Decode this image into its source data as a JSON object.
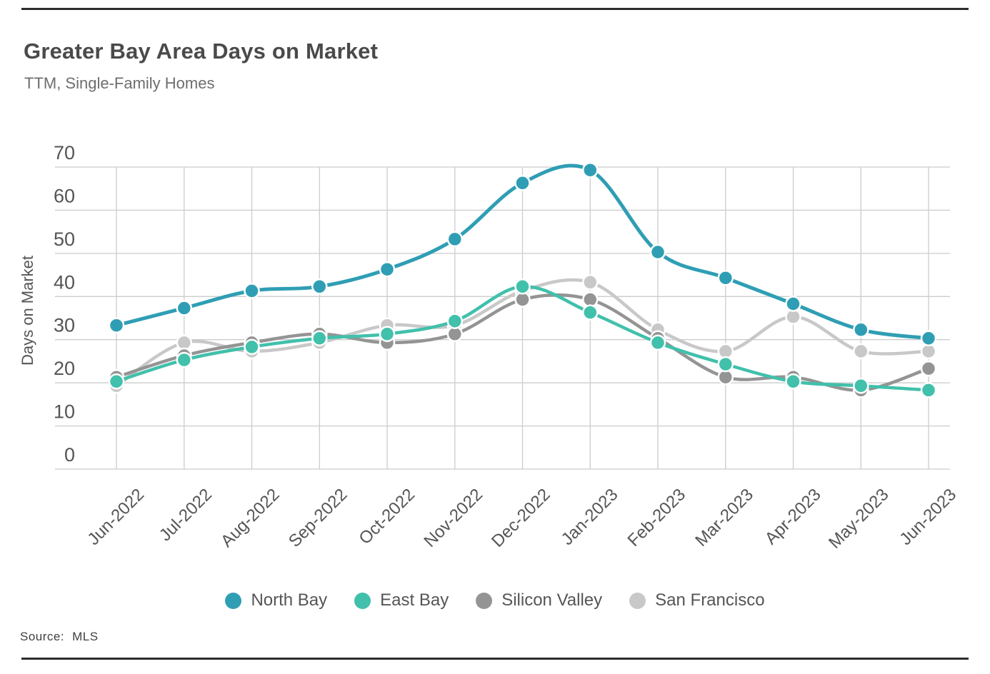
{
  "page": {
    "title": "Greater Bay Area Days on Market",
    "subtitle": "TTM, Single-Family Homes",
    "source_label": "Source:",
    "source_value": "MLS"
  },
  "chart_data": {
    "type": "line",
    "title": "Greater Bay Area Days on Market",
    "subtitle": "TTM, Single-Family Homes",
    "xlabel": "",
    "ylabel": "Days on Market",
    "ylim": [
      0,
      70
    ],
    "y_ticks": [
      70,
      60,
      50,
      40,
      30,
      20,
      10,
      0
    ],
    "grid": true,
    "smooth": true,
    "marker": "circle",
    "legend_position": "bottom",
    "source": "Source: MLS",
    "categories": [
      "Jun-2022",
      "Jul-2022",
      "Aug-2022",
      "Sep-2022",
      "Oct-2022",
      "Nov-2022",
      "Dec-2022",
      "Jan-2023",
      "Feb-2023",
      "Mar-2023",
      "Apr-2023",
      "May-2023",
      "Jun-2023"
    ],
    "series": [
      {
        "name": "North Bay",
        "color": "#2F9EB4",
        "values": [
          30,
          34,
          38,
          39,
          43,
          50,
          63,
          66,
          47,
          41,
          35,
          29,
          27
        ]
      },
      {
        "name": "East Bay",
        "color": "#41C0AB",
        "values": [
          17,
          22,
          25,
          27,
          28,
          31,
          39,
          33,
          26,
          21,
          17,
          16,
          15
        ]
      },
      {
        "name": "Silicon Valley",
        "color": "#949494",
        "values": [
          18,
          23,
          26,
          28,
          26,
          28,
          36,
          36,
          27,
          18,
          18,
          15,
          20
        ]
      },
      {
        "name": "San Francisco",
        "color": "#C8C8C8",
        "values": [
          16,
          26,
          24,
          26,
          30,
          30,
          38,
          40,
          29,
          24,
          32,
          24,
          24
        ]
      }
    ],
    "colors": {
      "grid": "#cccccc",
      "axis_text": "#555555",
      "title_text": "#4a4a4a",
      "subtitle_text": "#6e6e6e",
      "rule": "#2d2d2d"
    }
  }
}
